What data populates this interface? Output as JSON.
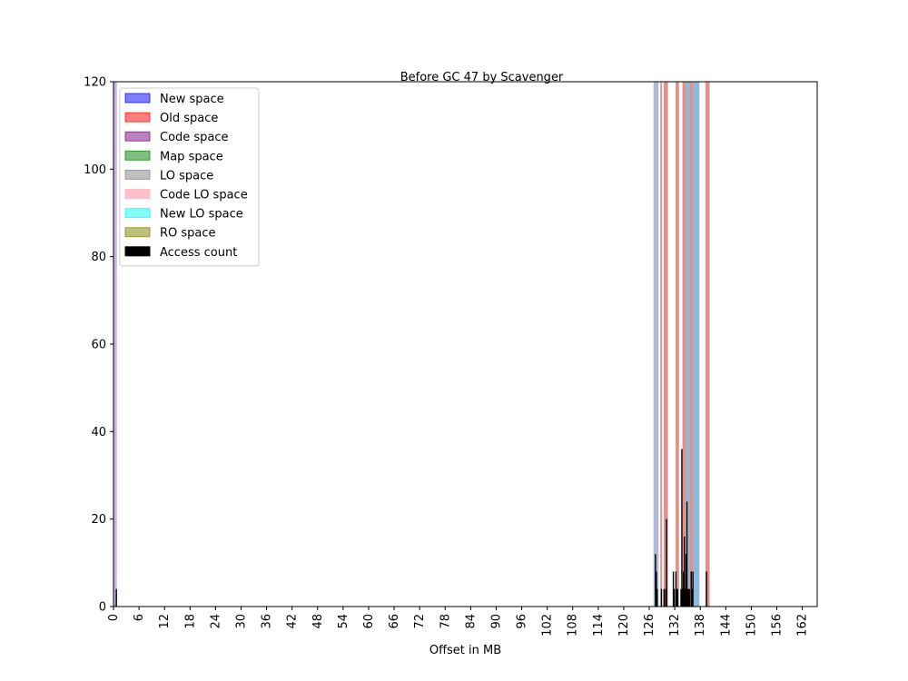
{
  "chart_data": {
    "type": "bar",
    "title": "Before GC 47 by Scavenger",
    "xlabel": "Offset in MB",
    "ylabel": "",
    "xlim": [
      0,
      165.5
    ],
    "ylim": [
      0,
      120
    ],
    "xticks": [
      0,
      6,
      12,
      18,
      24,
      30,
      36,
      42,
      48,
      54,
      60,
      66,
      72,
      78,
      84,
      90,
      96,
      102,
      108,
      114,
      120,
      126,
      132,
      138,
      144,
      150,
      156,
      162
    ],
    "yticks": [
      0,
      20,
      40,
      60,
      80,
      100,
      120
    ],
    "legend_position": "top-left",
    "legend": [
      {
        "label": "New space",
        "color": "#0000ff",
        "alpha": 0.5
      },
      {
        "label": "Old space",
        "color": "#ff0000",
        "alpha": 0.5
      },
      {
        "label": "Code space",
        "color": "#800080",
        "alpha": 0.5
      },
      {
        "label": "Map space",
        "color": "#008000",
        "alpha": 0.5
      },
      {
        "label": "LO space",
        "color": "#808080",
        "alpha": 0.5
      },
      {
        "label": "Code LO space",
        "color": "#ffc0cb",
        "alpha": 1.0
      },
      {
        "label": "New LO space",
        "color": "#00ffff",
        "alpha": 0.5
      },
      {
        "label": "RO space",
        "color": "#808000",
        "alpha": 0.5
      },
      {
        "label": "Access count",
        "color": "#000000",
        "alpha": 1.0
      }
    ],
    "space_regions": [
      {
        "space": "Code space",
        "start": 0.0,
        "end": 0.8,
        "color": "#9966cc",
        "alpha": 0.5
      },
      {
        "space": "LO space",
        "start": 127.0,
        "end": 128.2,
        "color": "#7a8fb5",
        "alpha": 0.6
      },
      {
        "space": "Old space",
        "start": 128.6,
        "end": 129.0,
        "color": "#d9756f",
        "alpha": 0.8
      },
      {
        "space": "Old space",
        "start": 129.4,
        "end": 130.4,
        "color": "#d9756f",
        "alpha": 0.8
      },
      {
        "space": "Old space",
        "start": 132.2,
        "end": 133.0,
        "color": "#d9756f",
        "alpha": 0.8
      },
      {
        "space": "Old space",
        "start": 133.8,
        "end": 134.6,
        "color": "#d9756f",
        "alpha": 0.8
      },
      {
        "space": "New LO space",
        "start": 134.6,
        "end": 135.6,
        "color": "#6ba9d8",
        "alpha": 0.8
      },
      {
        "space": "Old space",
        "start": 135.6,
        "end": 136.4,
        "color": "#d9756f",
        "alpha": 0.8
      },
      {
        "space": "New LO space",
        "start": 136.4,
        "end": 137.8,
        "color": "#6ba9d8",
        "alpha": 0.8
      },
      {
        "space": "Old space",
        "start": 139.2,
        "end": 140.2,
        "color": "#d9756f",
        "alpha": 0.8
      }
    ],
    "access_count": [
      {
        "x": 0.6,
        "y": 4
      },
      {
        "x": 127.4,
        "y": 12
      },
      {
        "x": 127.6,
        "y": 8
      },
      {
        "x": 127.8,
        "y": 4
      },
      {
        "x": 128.8,
        "y": 4
      },
      {
        "x": 129.4,
        "y": 4
      },
      {
        "x": 129.8,
        "y": 4
      },
      {
        "x": 130.0,
        "y": 20
      },
      {
        "x": 131.6,
        "y": 8
      },
      {
        "x": 131.8,
        "y": 4
      },
      {
        "x": 132.2,
        "y": 8
      },
      {
        "x": 132.4,
        "y": 4
      },
      {
        "x": 132.6,
        "y": 4
      },
      {
        "x": 133.4,
        "y": 4
      },
      {
        "x": 133.6,
        "y": 36
      },
      {
        "x": 133.8,
        "y": 4
      },
      {
        "x": 134.0,
        "y": 8
      },
      {
        "x": 134.2,
        "y": 16
      },
      {
        "x": 134.4,
        "y": 4
      },
      {
        "x": 134.6,
        "y": 12
      },
      {
        "x": 134.8,
        "y": 24
      },
      {
        "x": 135.0,
        "y": 4
      },
      {
        "x": 135.2,
        "y": 4
      },
      {
        "x": 135.4,
        "y": 4
      },
      {
        "x": 135.8,
        "y": 8
      },
      {
        "x": 136.0,
        "y": 4
      },
      {
        "x": 136.2,
        "y": 8
      },
      {
        "x": 139.4,
        "y": 8
      }
    ]
  }
}
